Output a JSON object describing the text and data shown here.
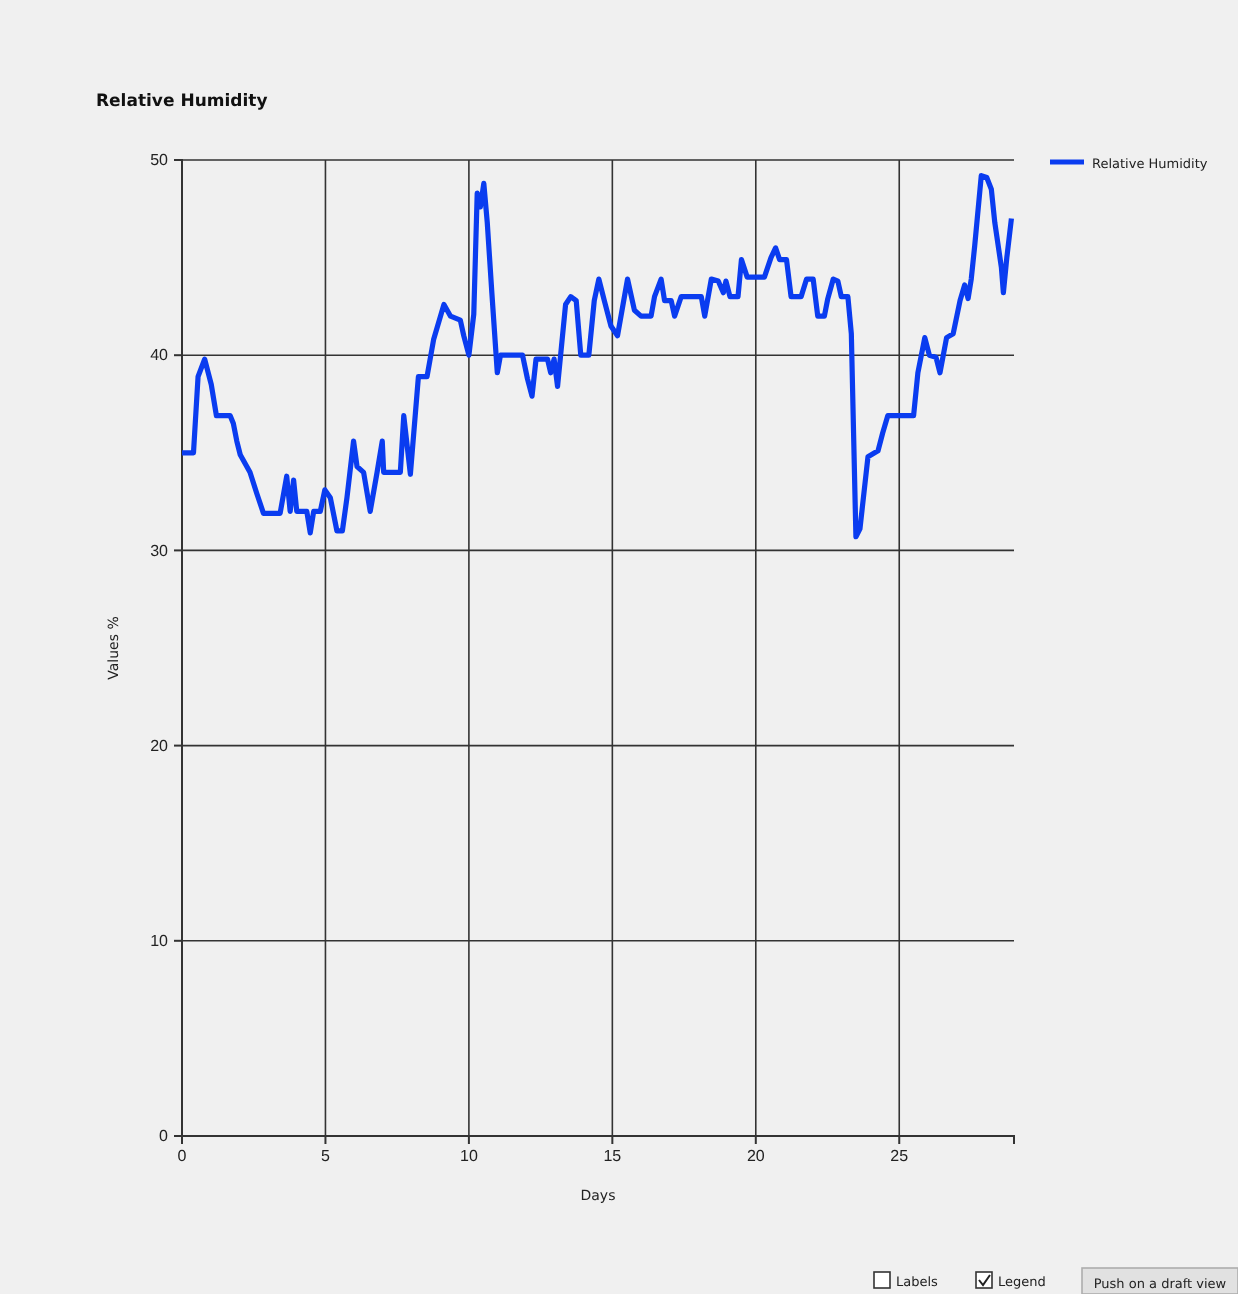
{
  "chart_data": {
    "type": "line",
    "title": "Relative Humidity",
    "xlabel": "Days",
    "ylabel": "Values  %",
    "xlim": [
      0,
      29
    ],
    "xticks": [
      0,
      5,
      10,
      15,
      20,
      25
    ],
    "ylim": [
      0,
      50
    ],
    "yticks": [
      0,
      10,
      20,
      30,
      40,
      50
    ],
    "grid": true,
    "legend": "right",
    "line_style": "solid",
    "marker": "none",
    "annotations": [
      "Labels",
      "Legend",
      "Push on a draft view"
    ],
    "series": [
      {
        "name": "Relative Humidity",
        "color": "#0a3cf0",
        "x": [
          0,
          0.4,
          0.56,
          0.79,
          1.02,
          1.2,
          1.68,
          1.79,
          1.91,
          2.03,
          2.37,
          2.61,
          2.84,
          3.42,
          3.65,
          3.77,
          3.89,
          4.0,
          4.35,
          4.47,
          4.59,
          4.82,
          4.98,
          5.17,
          5.4,
          5.59,
          5.75,
          5.98,
          6.1,
          6.33,
          6.56,
          6.8,
          6.98,
          7.03,
          7.61,
          7.73,
          7.96,
          8.24,
          8.54,
          8.77,
          9.13,
          9.36,
          9.7,
          9.82,
          10.0,
          10.17,
          10.29,
          10.4,
          10.52,
          10.64,
          10.8,
          10.99,
          11.1,
          11.87,
          12.04,
          12.2,
          12.34,
          12.74,
          12.85,
          12.97,
          13.09,
          13.37,
          13.55,
          13.74,
          13.9,
          14.18,
          14.37,
          14.53,
          14.72,
          14.95,
          15.18,
          15.53,
          15.77,
          16.0,
          16.35,
          16.47,
          16.7,
          16.82,
          17.05,
          17.17,
          17.4,
          18.1,
          18.22,
          18.45,
          18.69,
          18.87,
          18.96,
          19.1,
          19.38,
          19.5,
          19.7,
          20.3,
          20.53,
          20.69,
          20.83,
          21.07,
          21.23,
          21.58,
          21.77,
          22.0,
          22.16,
          22.39,
          22.51,
          22.7,
          22.86,
          22.98,
          23.21,
          23.33,
          23.49,
          23.63,
          23.91,
          24.26,
          24.42,
          24.6,
          25.5,
          25.65,
          25.89,
          26.05,
          26.28,
          26.42,
          26.65,
          26.88,
          27.12,
          27.28,
          27.4,
          27.51,
          27.63,
          27.86,
          28.05,
          28.21,
          28.33,
          28.56,
          28.63,
          28.75,
          28.91
        ],
        "values": [
          35,
          35,
          38.9,
          39.8,
          38.5,
          36.9,
          36.9,
          36.5,
          35.6,
          34.9,
          34,
          32.9,
          31.9,
          31.9,
          33.8,
          32,
          33.6,
          32,
          32,
          30.9,
          32,
          32,
          33.1,
          32.7,
          31,
          31,
          32.7,
          35.6,
          34.3,
          34,
          32,
          34,
          35.6,
          34,
          34,
          36.9,
          33.9,
          38.9,
          38.9,
          40.8,
          42.6,
          42,
          41.8,
          41,
          40,
          42.1,
          48.3,
          47.6,
          48.8,
          46.8,
          43.2,
          39.1,
          40,
          40,
          38.8,
          37.9,
          39.8,
          39.8,
          39.1,
          39.8,
          38.4,
          42.6,
          43,
          42.8,
          40,
          40,
          42.8,
          43.9,
          42.8,
          41.5,
          41,
          43.9,
          42.3,
          42,
          42,
          43,
          43.9,
          42.8,
          42.8,
          42,
          43,
          43,
          42,
          43.9,
          43.8,
          43.2,
          43.8,
          43,
          43,
          44.9,
          44,
          44,
          45,
          45.5,
          44.9,
          44.9,
          43,
          43,
          43.9,
          43.9,
          42,
          42,
          42.9,
          43.9,
          43.8,
          43,
          43,
          41.1,
          30.7,
          31.1,
          34.8,
          35.1,
          36,
          36.9,
          36.9,
          39.1,
          40.9,
          40,
          39.9,
          39.1,
          40.9,
          41.1,
          42.8,
          43.6,
          42.9,
          43.9,
          45.6,
          49.2,
          49.1,
          48.5,
          46.8,
          44.5,
          43.2,
          45,
          47
        ]
      }
    ]
  }
}
